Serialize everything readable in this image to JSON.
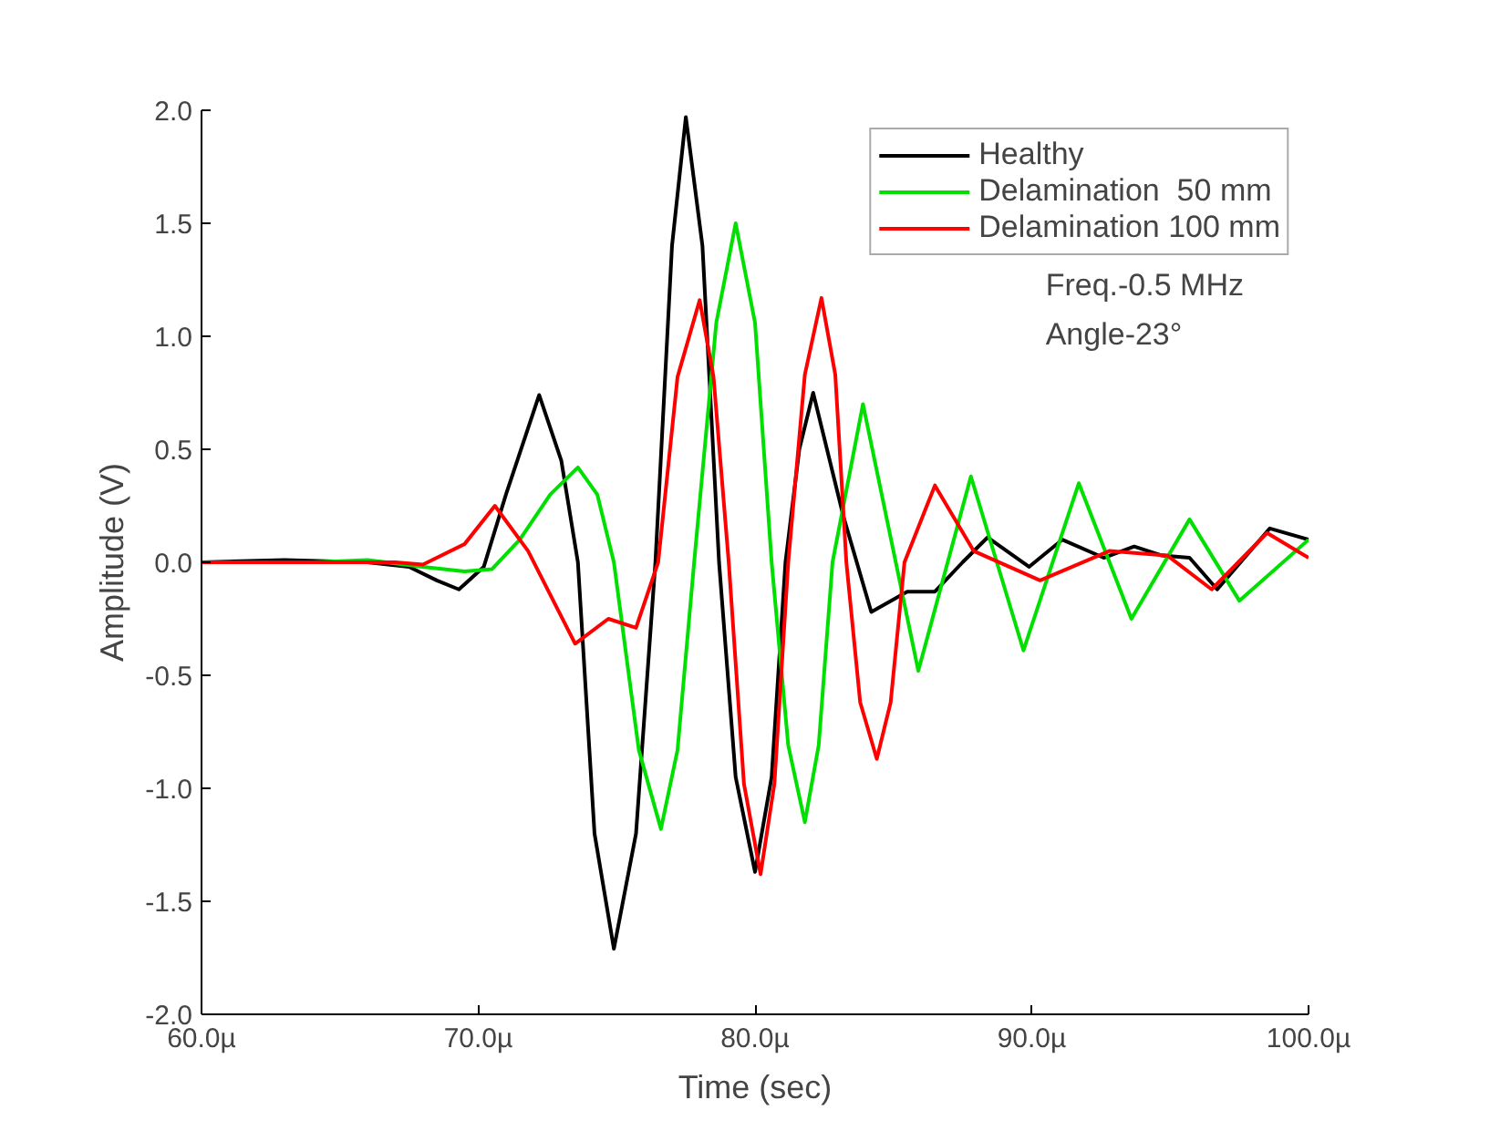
{
  "chart_data": {
    "type": "line",
    "xlabel": "Time (sec)",
    "ylabel": "Amplitude (V)",
    "xlim": [
      60,
      100
    ],
    "ylim": [
      -2.0,
      2.0
    ],
    "xticks": [
      {
        "value": 60,
        "label": "60.0µ"
      },
      {
        "value": 70,
        "label": "70.0µ"
      },
      {
        "value": 80,
        "label": "80.0µ"
      },
      {
        "value": 90,
        "label": "90.0µ"
      },
      {
        "value": 100,
        "label": "100.0µ"
      }
    ],
    "yticks": [
      {
        "value": -2,
        "label": "-2.0"
      },
      {
        "value": -1.5,
        "label": "-1.5"
      },
      {
        "value": -1,
        "label": "-1.0"
      },
      {
        "value": -0.5,
        "label": "-0.5"
      },
      {
        "value": 0,
        "label": "0.0"
      },
      {
        "value": 0.5,
        "label": "0.5"
      },
      {
        "value": 1,
        "label": "1.0"
      },
      {
        "value": 1.5,
        "label": "1.5"
      },
      {
        "value": 2,
        "label": "2.0"
      }
    ],
    "grid": false,
    "legend": "top right",
    "marker": "none",
    "line_style": "solid",
    "annotations": [
      "Freq.-0.5 MHz",
      "Angle-23°"
    ],
    "series": [
      {
        "name": "Healthy",
        "color": "#000000",
        "x": [
          60,
          63,
          66,
          67.5,
          68.5,
          69.3,
          70.2,
          71.0,
          72.2,
          73.0,
          73.6,
          74.2,
          74.9,
          75.7,
          76.4,
          77.0,
          77.5,
          78.1,
          78.7,
          79.3,
          80.0,
          80.6,
          81.1,
          81.6,
          82.1,
          83.2,
          84.2,
          85.5,
          86.5,
          87.5,
          88.4,
          89.9,
          91.1,
          92.6,
          93.7,
          94.7,
          95.7,
          96.7,
          98.6,
          100
        ],
        "values": [
          0,
          0.01,
          0,
          -0.02,
          -0.08,
          -0.12,
          -0.02,
          0.3,
          0.74,
          0.45,
          0,
          -1.2,
          -1.71,
          -1.2,
          0,
          1.4,
          1.97,
          1.4,
          0,
          -0.95,
          -1.37,
          -0.95,
          0,
          0.5,
          0.75,
          0.2,
          -0.22,
          -0.13,
          -0.13,
          0.0,
          0.11,
          -0.02,
          0.1,
          0.02,
          0.07,
          0.03,
          0.02,
          -0.12,
          0.15,
          0.1
        ]
      },
      {
        "name": "Delamination  50 mm",
        "color": "#00e000",
        "x": [
          60,
          64,
          66,
          68,
          69.5,
          70.5,
          71.5,
          72.6,
          73.6,
          74.3,
          74.9,
          75.8,
          76.6,
          77.2,
          77.8,
          78.6,
          79.3,
          80.0,
          80.6,
          81.2,
          81.8,
          82.3,
          82.8,
          83.9,
          85.9,
          87.8,
          89.7,
          91.7,
          93.6,
          95.7,
          97.5,
          100
        ],
        "values": [
          0,
          0,
          0.01,
          -0.02,
          -0.04,
          -0.03,
          0.1,
          0.3,
          0.42,
          0.3,
          0,
          -0.83,
          -1.18,
          -0.83,
          0,
          1.06,
          1.5,
          1.06,
          0,
          -0.81,
          -1.15,
          -0.81,
          0,
          0.7,
          -0.48,
          0.38,
          -0.39,
          0.35,
          -0.25,
          0.19,
          -0.17,
          0.1
        ]
      },
      {
        "name": "Delamination 100 mm",
        "color": "#ff0000",
        "x": [
          60,
          64,
          67,
          68,
          69.5,
          70.6,
          71.8,
          73.5,
          74.7,
          75.7,
          76.5,
          77.2,
          78.0,
          78.5,
          79.05,
          79.6,
          80.2,
          80.7,
          81.2,
          81.8,
          82.4,
          82.9,
          83.3,
          83.8,
          84.4,
          84.9,
          85.4,
          86.5,
          87.9,
          90.3,
          92.8,
          94.9,
          96.5,
          98.5,
          100
        ],
        "values": [
          0,
          0,
          0,
          -0.01,
          0.08,
          0.25,
          0.05,
          -0.36,
          -0.25,
          -0.29,
          0,
          0.82,
          1.16,
          0.82,
          0,
          -0.98,
          -1.38,
          -0.98,
          0,
          0.83,
          1.17,
          0.83,
          0,
          -0.62,
          -0.87,
          -0.62,
          0,
          0.34,
          0.05,
          -0.08,
          0.05,
          0.03,
          -0.12,
          0.13,
          0.02
        ]
      }
    ]
  }
}
